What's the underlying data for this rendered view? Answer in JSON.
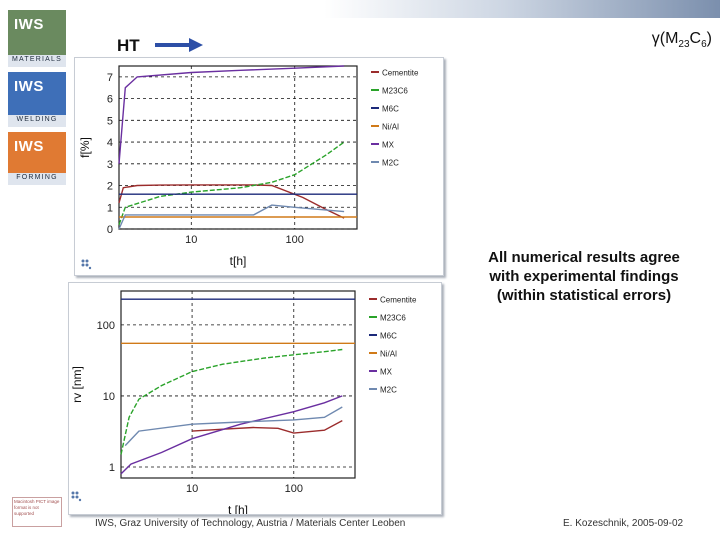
{
  "slide": {
    "header_title_gamma": "γ",
    "header_title_open": "(M",
    "header_title_sub1": "23",
    "header_title_mid": "C",
    "header_title_sub2": "6",
    "header_title_close": ")",
    "ht_label": "HT",
    "note_line1": "All numerical results agree",
    "note_line2": "with experimental findings",
    "note_line3": "(within statistical errors)",
    "footer_left": "IWS, Graz University of Technology, Austria / Materials Center Leoben",
    "footer_right": "E. Kozeschnik, 2005-09-02"
  },
  "logos": [
    {
      "name": "IWS",
      "sub": "MATERIALS"
    },
    {
      "name": "IWS",
      "sub": "WELDING"
    },
    {
      "name": "IWS",
      "sub": "FORMING"
    }
  ],
  "stamp_text": "Macintosh PICT image format is not supported",
  "colors": {
    "Cementite": "#9b2c2c",
    "M23C6": "#2aa32a",
    "M6C": "#1c2a7a",
    "Ni/Al": "#d07a18",
    "MX": "#6a2fa0",
    "M2C": "#6f89b0"
  },
  "chart_data": [
    {
      "type": "line",
      "title": "",
      "xlabel": "t[h]",
      "ylabel": "f[%]",
      "xscale": "log",
      "xlim": [
        2,
        400
      ],
      "ylim": [
        0,
        7.5
      ],
      "xticks": [
        "10",
        "100"
      ],
      "yticks": [
        "0",
        "1",
        "2",
        "3",
        "4",
        "5",
        "6",
        "7"
      ],
      "grid": true,
      "legend": "right",
      "series": [
        {
          "name": "Cementite",
          "x": [
            2,
            2.2,
            3,
            5,
            10,
            20,
            40,
            60,
            120,
            200,
            300
          ],
          "y": [
            1.2,
            1.9,
            2.0,
            2.02,
            2.03,
            2.03,
            2.03,
            2.0,
            1.45,
            0.9,
            0.5
          ]
        },
        {
          "name": "M23C6",
          "x": [
            2,
            2.3,
            5,
            10,
            30,
            60,
            100,
            200,
            300
          ],
          "y": [
            0.2,
            1.0,
            1.5,
            1.7,
            1.9,
            2.15,
            2.5,
            3.4,
            4.0
          ]
        },
        {
          "name": "M6C",
          "x": [
            2,
            400
          ],
          "y": [
            1.6,
            1.6
          ]
        },
        {
          "name": "Ni/Al",
          "x": [
            2,
            400
          ],
          "y": [
            0.55,
            0.55
          ]
        },
        {
          "name": "MX",
          "x": [
            2,
            2.3,
            3,
            10,
            30,
            100,
            300
          ],
          "y": [
            3.0,
            6.5,
            7.0,
            7.2,
            7.3,
            7.4,
            7.5
          ]
        },
        {
          "name": "M2C",
          "x": [
            2,
            2.3,
            10,
            40,
            60,
            100,
            300
          ],
          "y": [
            0.0,
            0.65,
            0.65,
            0.65,
            1.1,
            1.0,
            0.8
          ]
        }
      ]
    },
    {
      "type": "line",
      "title": "",
      "xlabel": "t [h]",
      "ylabel": "rv [nm]",
      "xscale": "log",
      "yscale": "log",
      "xlim": [
        2,
        400
      ],
      "ylim": [
        0.7,
        300
      ],
      "xticks": [
        "10",
        "100"
      ],
      "yticks": [
        "1",
        "10",
        "100"
      ],
      "grid": true,
      "legend": "right",
      "series": [
        {
          "name": "Cementite",
          "x": [
            10,
            20,
            40,
            70,
            100,
            200,
            300
          ],
          "y": [
            3.2,
            3.4,
            3.6,
            3.5,
            3.0,
            3.3,
            4.5
          ]
        },
        {
          "name": "M23C6",
          "x": [
            2,
            2.4,
            3,
            5,
            10,
            20,
            50,
            100,
            200,
            300
          ],
          "y": [
            1.5,
            5.0,
            9.0,
            14.0,
            22.0,
            28.0,
            34.0,
            38.0,
            42.0,
            45.0
          ]
        },
        {
          "name": "M6C",
          "x": [
            2,
            400
          ],
          "y": [
            230,
            230
          ]
        },
        {
          "name": "Ni/Al",
          "x": [
            2,
            400
          ],
          "y": [
            55,
            55
          ]
        },
        {
          "name": "MX",
          "x": [
            2,
            2.5,
            5,
            10,
            30,
            100,
            200,
            300
          ],
          "y": [
            0.8,
            1.1,
            1.6,
            2.5,
            4.0,
            6.0,
            8.0,
            10.0
          ]
        },
        {
          "name": "M2C",
          "x": [
            2.2,
            3,
            10,
            30,
            100,
            200,
            300
          ],
          "y": [
            2.0,
            3.2,
            4.0,
            4.3,
            4.6,
            5.0,
            7.0
          ]
        }
      ]
    }
  ]
}
